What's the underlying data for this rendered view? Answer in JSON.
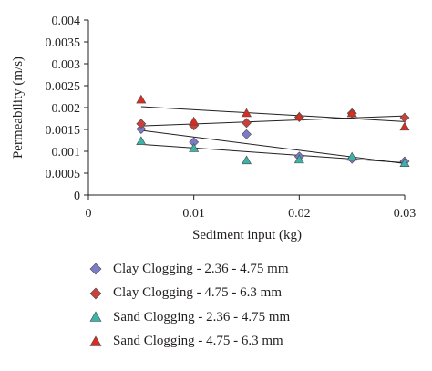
{
  "chart_data": {
    "type": "scatter",
    "xlabel": "Sediment input (kg)",
    "ylabel": "Permeability (m/s)",
    "xlim": [
      0,
      0.03
    ],
    "ylim": [
      0,
      0.004
    ],
    "x_ticks": [
      "0",
      "0.01",
      "0.02",
      "0.03"
    ],
    "y_ticks": [
      "0",
      "0.0005",
      "0.001",
      "0.0015",
      "0.002",
      "0.0025",
      "0.003",
      "0.0035",
      "0.004"
    ],
    "grid": false,
    "legend_position": "bottom",
    "series": [
      {
        "name": "Clay Clogging - 2.36 - 4.75 mm",
        "marker": "diamond",
        "color": "#7b7bc8",
        "x": [
          0.005,
          0.01,
          0.015,
          0.02,
          0.025,
          0.03
        ],
        "y": [
          0.00151,
          0.00121,
          0.00139,
          0.00088,
          0.00083,
          0.00077
        ],
        "trend": [
          [
            0.005,
            0.00148
          ],
          [
            0.03,
            0.00072
          ]
        ]
      },
      {
        "name": "Clay Clogging - 4.75 - 6.3 mm",
        "marker": "diamond",
        "color": "#c8413c",
        "x": [
          0.005,
          0.01,
          0.015,
          0.02,
          0.025,
          0.03
        ],
        "y": [
          0.00163,
          0.00159,
          0.00165,
          0.00178,
          0.00187,
          0.00177
        ],
        "trend": [
          [
            0.005,
            0.00158
          ],
          [
            0.03,
            0.00181
          ]
        ]
      },
      {
        "name": "Sand Clogging - 2.36 - 4.75 mm",
        "marker": "triangle",
        "color": "#3bb3a8",
        "x": [
          0.005,
          0.01,
          0.015,
          0.02,
          0.025,
          0.03
        ],
        "y": [
          0.00123,
          0.00107,
          0.00079,
          0.00081,
          0.00087,
          0.00073
        ],
        "trend": [
          [
            0.005,
            0.00116
          ],
          [
            0.03,
            0.00074
          ]
        ]
      },
      {
        "name": "Sand Clogging - 4.75 - 6.3 mm",
        "marker": "triangle",
        "color": "#d92d1f",
        "x": [
          0.005,
          0.01,
          0.015,
          0.02,
          0.025,
          0.03
        ],
        "y": [
          0.00218,
          0.00168,
          0.00187,
          0.00179,
          0.00187,
          0.00156
        ],
        "trend": [
          [
            0.005,
            0.00202
          ],
          [
            0.03,
            0.00168
          ]
        ]
      }
    ]
  }
}
